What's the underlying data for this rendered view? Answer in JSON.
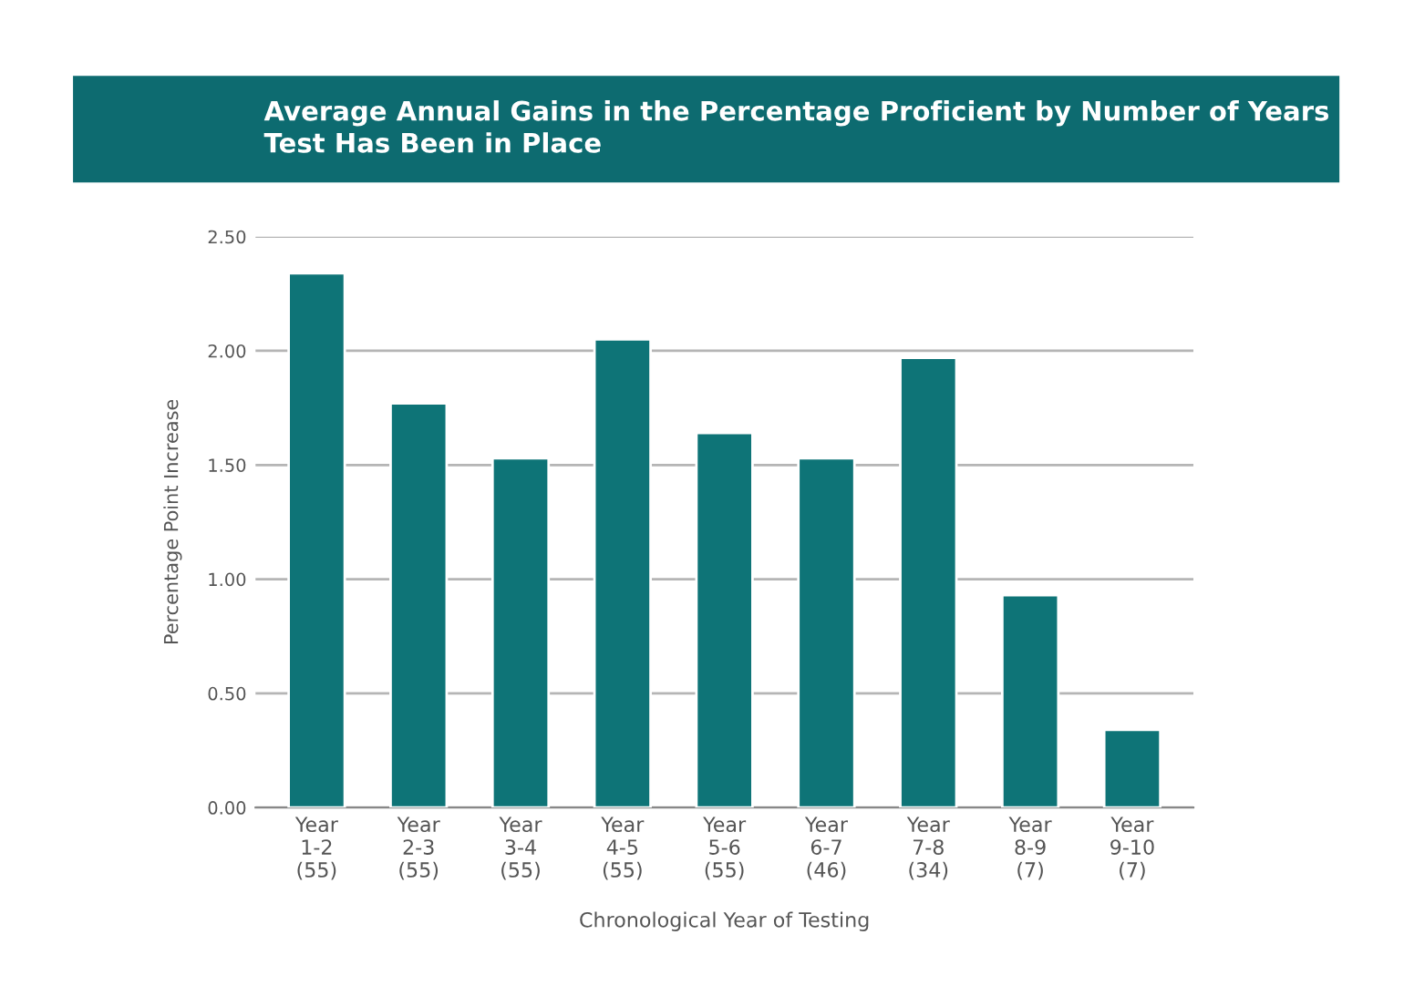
{
  "chart_data": {
    "type": "bar",
    "title": "Average Annual Gains in the Percentage Proficient by Number of Years\nTest Has Been in Place",
    "xlabel": "Chronological Year of Testing",
    "ylabel": "Percentage Point Increase",
    "categories": [
      "Year\n1-2\n(55)",
      "Year\n2-3\n(55)",
      "Year\n3-4\n(55)",
      "Year\n4-5\n(55)",
      "Year\n5-6\n(55)",
      "Year\n6-7\n(46)",
      "Year\n7-8\n(34)",
      "Year\n8-9\n(7)",
      "Year\n9-10\n(7)"
    ],
    "values": [
      2.34,
      1.77,
      1.53,
      2.05,
      1.64,
      1.53,
      1.97,
      0.93,
      0.34
    ],
    "color": "#0e7477",
    "ylim": [
      0,
      2.5
    ],
    "yticks": [
      {
        "value": 0,
        "label": "0.00"
      },
      {
        "value": 0.5,
        "label": "0.50"
      },
      {
        "value": 1,
        "label": "1.00"
      },
      {
        "value": 1.5,
        "label": "1.50"
      },
      {
        "value": 2,
        "label": "2.00"
      },
      {
        "value": 2.5,
        "label": "2.50"
      }
    ],
    "grid": "y"
  }
}
